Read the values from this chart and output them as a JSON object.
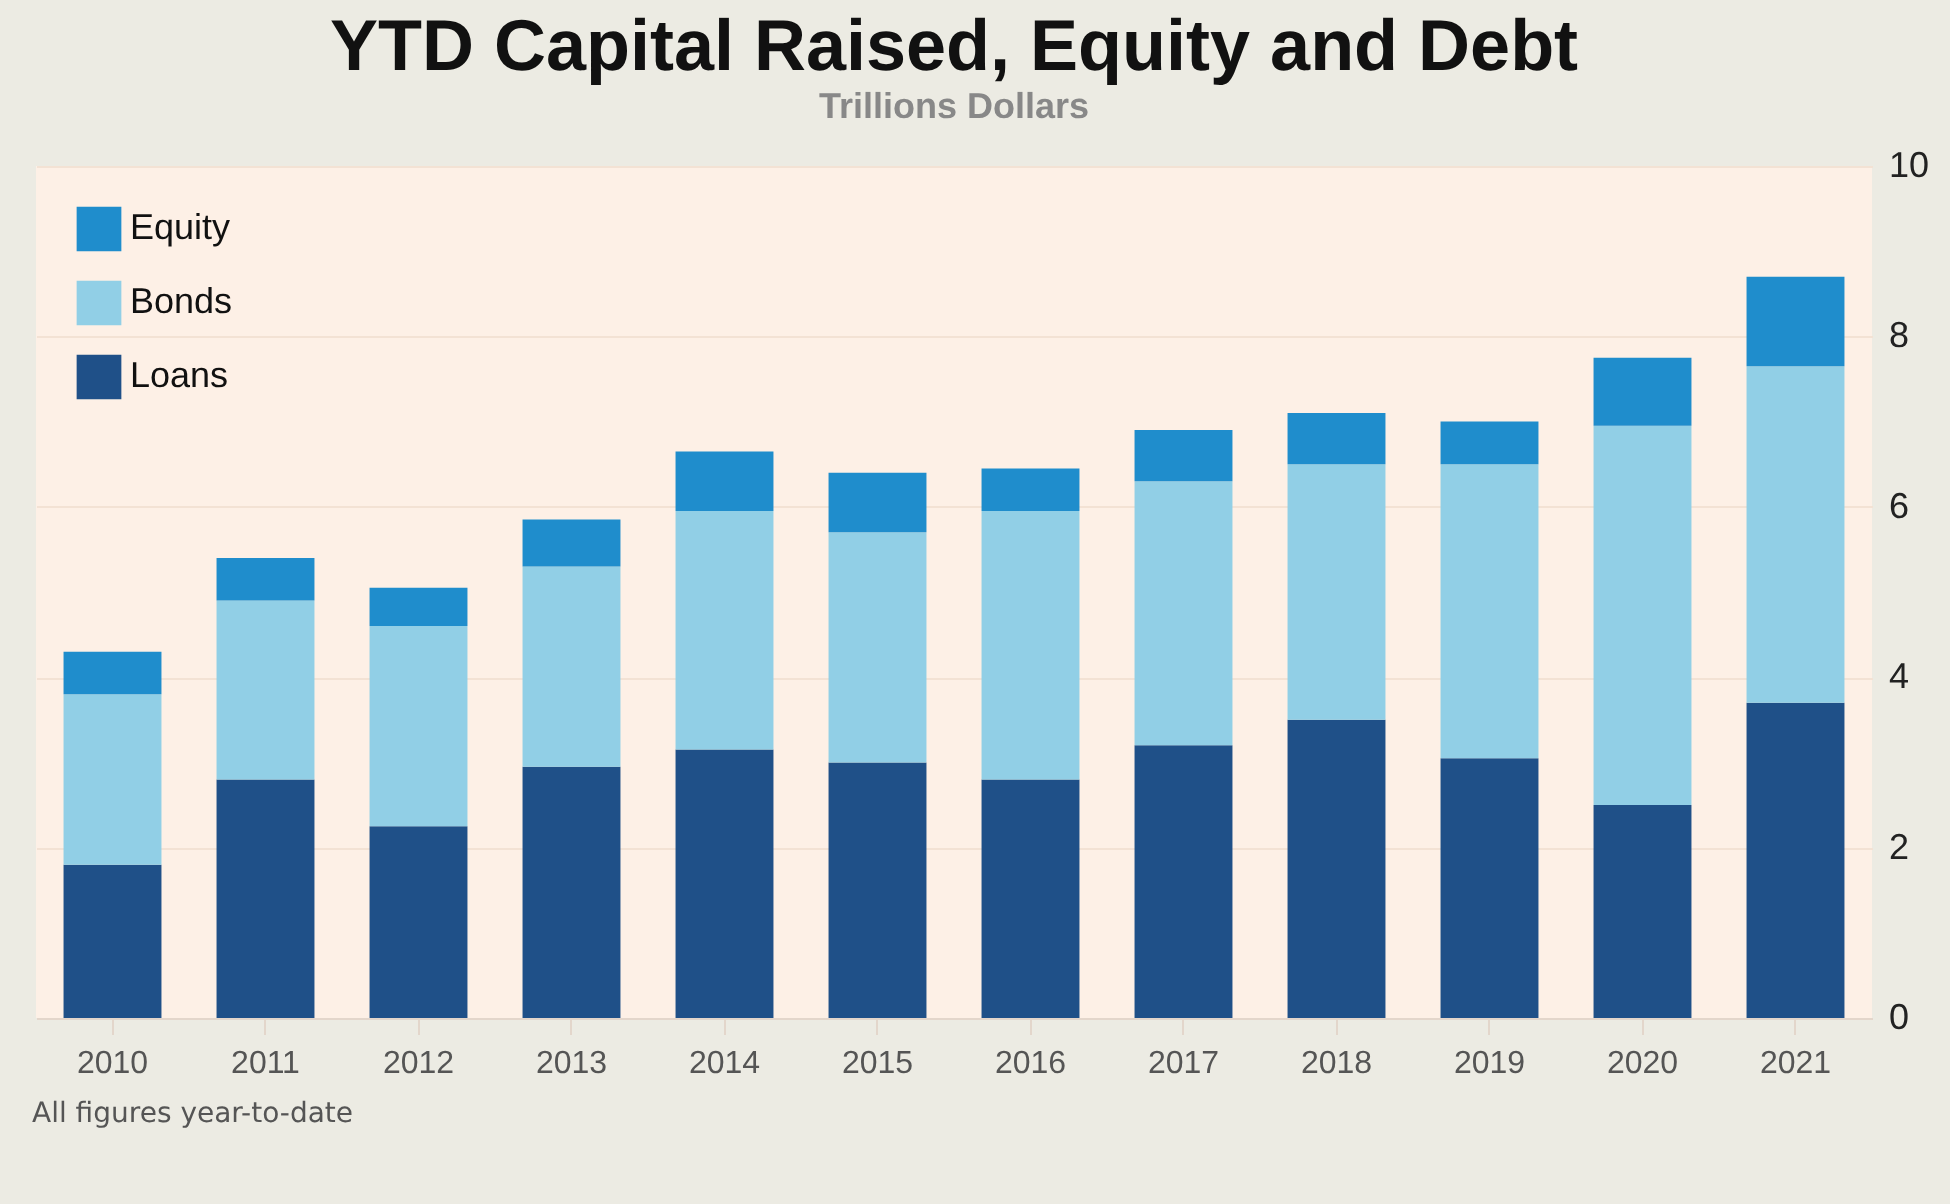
{
  "chart_data": {
    "type": "bar",
    "title": "YTD Capital Raised, Equity and Debt",
    "subtitle": "Trillions Dollars",
    "categories": [
      "2010",
      "2011",
      "2012",
      "2013",
      "2014",
      "2015",
      "2016",
      "2017",
      "2018",
      "2019",
      "2020",
      "2021"
    ],
    "stacked": true,
    "series": [
      {
        "name": "Loans",
        "color": "#1f5088",
        "values": [
          1.8,
          2.8,
          2.25,
          2.95,
          3.15,
          3.0,
          2.8,
          3.2,
          3.5,
          3.05,
          2.5,
          3.7
        ]
      },
      {
        "name": "Bonds",
        "color": "#91cfe6",
        "values": [
          2.0,
          2.1,
          2.35,
          2.35,
          2.8,
          2.7,
          3.15,
          3.1,
          3.0,
          3.45,
          4.45,
          3.95
        ]
      },
      {
        "name": "Equity",
        "color": "#1f8dcc",
        "values": [
          0.5,
          0.5,
          0.45,
          0.55,
          0.7,
          0.7,
          0.5,
          0.6,
          0.6,
          0.5,
          0.8,
          1.05
        ]
      }
    ],
    "ylim": [
      0,
      10
    ],
    "yticks": [
      0,
      2,
      4,
      6,
      8,
      10
    ],
    "grid": "y",
    "legend": "top left",
    "annotations": [
      "All figures year-to-date"
    ]
  }
}
